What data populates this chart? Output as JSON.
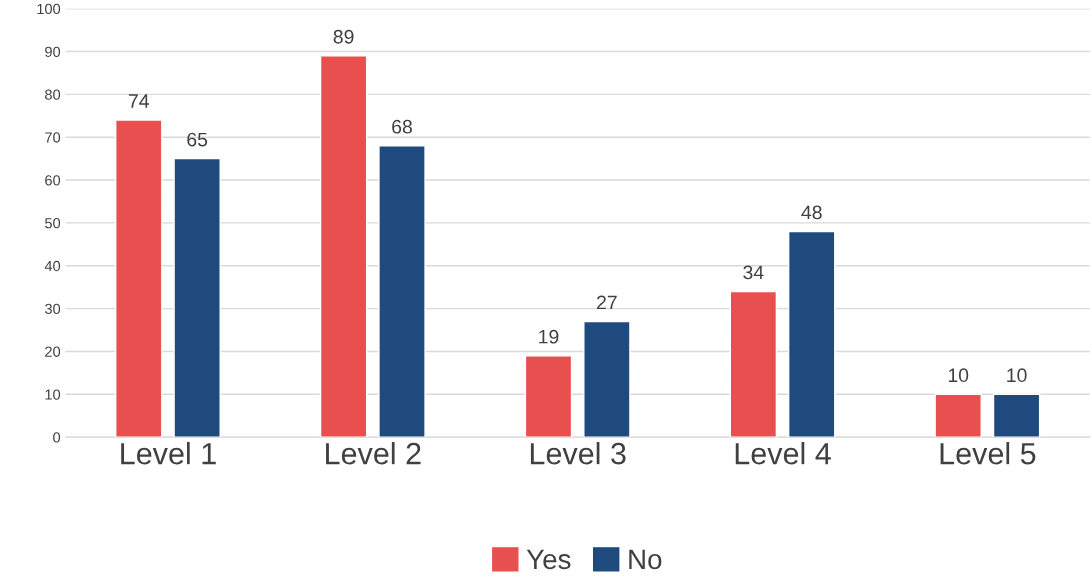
{
  "chart_data": {
    "type": "bar",
    "categories": [
      "Level 1",
      "Level 2",
      "Level 3",
      "Level 4",
      "Level 5"
    ],
    "series": [
      {
        "name": "Yes",
        "color": "#e85050",
        "values": [
          74,
          89,
          19,
          34,
          10
        ]
      },
      {
        "name": "No",
        "color": "#1f4a7e",
        "values": [
          65,
          68,
          27,
          48,
          10
        ]
      }
    ],
    "ylim": [
      0,
      100
    ],
    "yticks": [
      0,
      10,
      20,
      30,
      40,
      50,
      60,
      70,
      80,
      90,
      100
    ],
    "grid": "y",
    "legend": "bottom",
    "data_labels": true
  }
}
